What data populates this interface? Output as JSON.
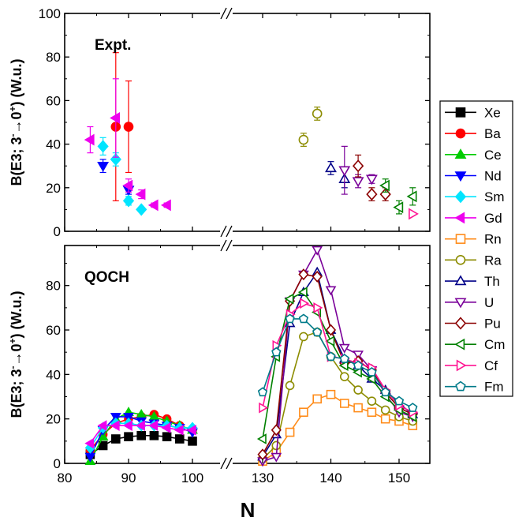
{
  "chart_data": {
    "type": "scatter",
    "xlabel": "N",
    "x_breaks": [
      [
        100,
        130
      ]
    ],
    "x_ticks": [
      80,
      90,
      100,
      130,
      140,
      150
    ],
    "panels": [
      {
        "panel_label": "Expt.",
        "ylabel_main": "B(E3; 3",
        "ylabel_sup1": "-",
        "ylabel_arrow": "→0",
        "ylabel_sup2": "+",
        "ylabel_unit": ") (W.u.)",
        "ylim": [
          0,
          100
        ],
        "y_ticks": [
          0,
          20,
          40,
          60,
          80,
          100
        ],
        "series": [
          {
            "name": "Ba",
            "points": [
              [
                88,
                48,
                34
              ],
              [
                90,
                48,
                21
              ]
            ]
          },
          {
            "name": "Nd",
            "points": [
              [
                86,
                30,
                3
              ],
              [
                90,
                19,
                2
              ]
            ]
          },
          {
            "name": "Sm",
            "points": [
              [
                86,
                39,
                4
              ],
              [
                88,
                33,
                3
              ],
              [
                90,
                14,
                2
              ],
              [
                92,
                10,
                1
              ]
            ]
          },
          {
            "name": "Gd",
            "points": [
              [
                84,
                42,
                6
              ],
              [
                88,
                52,
                18
              ],
              [
                90,
                21,
                3
              ],
              [
                92,
                17,
                2
              ],
              [
                94,
                12,
                1
              ],
              [
                96,
                12,
                1
              ]
            ]
          },
          {
            "name": "Ra",
            "points": [
              [
                136,
                42,
                3
              ],
              [
                138,
                54,
                3
              ]
            ]
          },
          {
            "name": "Th",
            "points": [
              [
                140,
                29,
                3
              ],
              [
                142,
                24,
                4
              ]
            ]
          },
          {
            "name": "U",
            "points": [
              [
                142,
                28,
                11
              ],
              [
                144,
                23,
                3
              ],
              [
                146,
                24,
                2
              ]
            ]
          },
          {
            "name": "Pu",
            "points": [
              [
                144,
                30,
                5
              ],
              [
                146,
                17,
                3
              ],
              [
                148,
                17,
                3
              ]
            ]
          },
          {
            "name": "Cm",
            "points": [
              [
                148,
                21,
                3
              ],
              [
                150,
                11,
                3
              ],
              [
                152,
                16,
                4
              ]
            ]
          },
          {
            "name": "Cf",
            "points": [
              [
                152,
                8,
                0
              ]
            ]
          },
          {
            "name": "Fm",
            "points": []
          }
        ]
      },
      {
        "panel_label": "QOCH",
        "ylabel_main": "B(E3; 3",
        "ylabel_sup1": "-",
        "ylabel_arrow": "→0",
        "ylabel_sup2": "+",
        "ylabel_unit": ") (W.u.)",
        "ylim": [
          0,
          98
        ],
        "y_ticks": [
          0,
          20,
          40,
          60,
          80
        ],
        "series": [
          {
            "name": "Xe",
            "x": [
              84,
              86,
              88,
              90,
              92,
              94,
              96,
              98,
              100
            ],
            "y": [
              4,
              8,
              11,
              12,
              12.5,
              12.5,
              12,
              11,
              10
            ]
          },
          {
            "name": "Ba",
            "x": [
              84,
              86,
              88,
              90,
              92,
              94,
              96,
              98,
              100
            ],
            "y": [
              6,
              13,
              18,
              20,
              21,
              22,
              20,
              17,
              15
            ]
          },
          {
            "name": "Ce",
            "x": [
              84,
              86,
              88,
              90,
              92,
              94,
              96,
              98,
              100
            ],
            "y": [
              1,
              12,
              20,
              23,
              22,
              21,
              19,
              17,
              15
            ]
          },
          {
            "name": "Nd",
            "x": [
              84,
              86,
              88,
              90,
              92,
              94,
              96,
              98,
              100
            ],
            "y": [
              3,
              15,
              21,
              21,
              19,
              18,
              17,
              16,
              14
            ]
          },
          {
            "name": "Sm",
            "x": [
              84,
              86,
              88,
              90,
              92,
              94,
              96,
              98,
              100
            ],
            "y": [
              7,
              16,
              18,
              18,
              17,
              17,
              17,
              16,
              16
            ]
          },
          {
            "name": "Gd",
            "x": [
              84,
              86,
              88,
              90,
              92,
              94,
              96,
              98,
              100
            ],
            "y": [
              9,
              17,
              17,
              17,
              17,
              17,
              16,
              15,
              15
            ]
          },
          {
            "name": "Rn",
            "x": [
              130,
              132,
              134,
              136,
              138,
              140,
              142,
              144,
              146,
              148,
              150,
              152
            ],
            "y": [
              1,
              5,
              14,
              23,
              29,
              31,
              27,
              25,
              23,
              20,
              19,
              17
            ]
          },
          {
            "name": "Ra",
            "x": [
              130,
              132,
              134,
              136,
              138,
              140,
              142,
              144,
              146,
              148,
              150,
              152
            ],
            "y": [
              2,
              8,
              35,
              57,
              59,
              48,
              39,
              33,
              28,
              24,
              21,
              19
            ]
          },
          {
            "name": "Th",
            "x": [
              130,
              132,
              134,
              136,
              138,
              140,
              142,
              144,
              146,
              148,
              150,
              152
            ],
            "y": [
              3,
              13,
              63,
              77,
              86,
              60,
              47,
              44,
              38,
              33,
              27,
              22
            ]
          },
          {
            "name": "U",
            "x": [
              130,
              132,
              134,
              136,
              138,
              140,
              142,
              144,
              146,
              148,
              150,
              152
            ],
            "y": [
              1,
              3,
              73,
              85,
              96,
              78,
              52,
              49,
              42,
              31,
              23,
              21
            ]
          },
          {
            "name": "Pu",
            "x": [
              130,
              132,
              134,
              136,
              138,
              140,
              142,
              144,
              146,
              148,
              150,
              152
            ],
            "y": [
              4,
              15,
              73,
              85,
              84,
              60,
              45,
              46,
              42,
              32,
              25,
              22
            ]
          },
          {
            "name": "Cm",
            "x": [
              130,
              132,
              134,
              136,
              138,
              140,
              142,
              144,
              146,
              148,
              150,
              152
            ],
            "y": [
              11,
              48,
              74,
              77,
              68,
              55,
              44,
              41,
              38,
              30,
              24,
              21
            ]
          },
          {
            "name": "Cf",
            "x": [
              130,
              132,
              134,
              136,
              138,
              140,
              142,
              144,
              146,
              148,
              150,
              152
            ],
            "y": [
              25,
              53,
              67,
              72,
              70,
              48,
              47,
              45,
              43,
              33,
              26,
              23
            ]
          },
          {
            "name": "Fm",
            "x": [
              130,
              132,
              134,
              136,
              138,
              140,
              142,
              144,
              146,
              148,
              150,
              152
            ],
            "y": [
              32,
              50,
              65,
              65,
              59,
              48,
              47,
              44,
              41,
              32,
              28,
              25
            ]
          }
        ]
      }
    ],
    "legend": {
      "placement": "right",
      "entries": [
        {
          "name": "Xe",
          "color": "#000000",
          "marker": "square",
          "filled": true
        },
        {
          "name": "Ba",
          "color": "#ff0000",
          "marker": "circle",
          "filled": true
        },
        {
          "name": "Ce",
          "color": "#00cc00",
          "marker": "triangle-up",
          "filled": true
        },
        {
          "name": "Nd",
          "color": "#0000ff",
          "marker": "triangle-down",
          "filled": true
        },
        {
          "name": "Sm",
          "color": "#00e5ff",
          "marker": "diamond",
          "filled": true
        },
        {
          "name": "Gd",
          "color": "#ee00ee",
          "marker": "triangle-left",
          "filled": true
        },
        {
          "name": "Rn",
          "color": "#ff8c1a",
          "marker": "square",
          "filled": false
        },
        {
          "name": "Ra",
          "color": "#8c8c00",
          "marker": "circle",
          "filled": false
        },
        {
          "name": "Th",
          "color": "#000088",
          "marker": "triangle-up",
          "filled": false
        },
        {
          "name": "U",
          "color": "#7a0099",
          "marker": "triangle-down",
          "filled": false
        },
        {
          "name": "Pu",
          "color": "#8b0000",
          "marker": "diamond",
          "filled": false
        },
        {
          "name": "Cm",
          "color": "#008000",
          "marker": "triangle-left",
          "filled": false
        },
        {
          "name": "Cf",
          "color": "#ff1493",
          "marker": "triangle-right",
          "filled": false
        },
        {
          "name": "Fm",
          "color": "#007b8a",
          "marker": "pentagon",
          "filled": false
        }
      ]
    }
  }
}
